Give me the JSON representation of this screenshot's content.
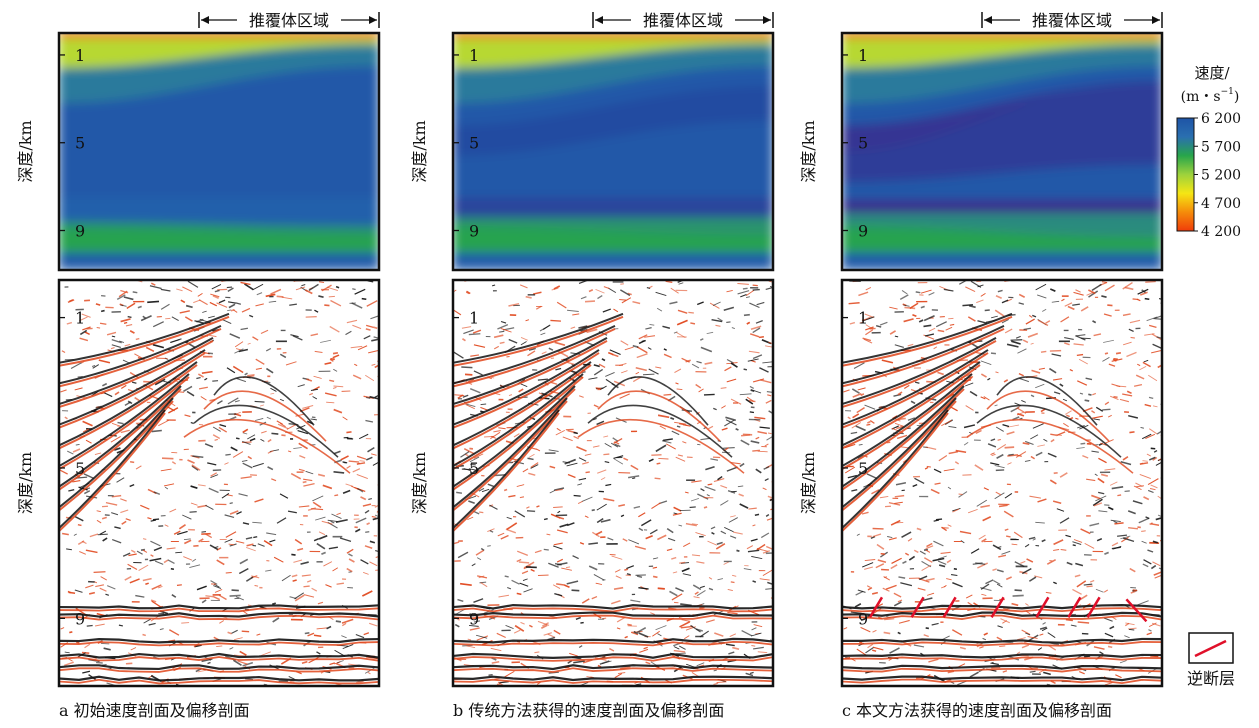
{
  "chart_data": [
    {
      "type": "heatmap",
      "panel": "a",
      "ylabel": "深度/km",
      "yticks": [
        1,
        5,
        9
      ],
      "region_label": "推覆体区域",
      "caption": "a 初始速度剖面及偏移剖面",
      "velocity_layers": [
        {
          "depth_left": 0.2,
          "depth_right": 0.2,
          "v": 4300
        },
        {
          "depth_left": 1.6,
          "depth_right": 0.5,
          "v": 5100
        },
        {
          "depth_left": 3.2,
          "depth_right": 1.5,
          "v": 5800
        },
        {
          "depth_left": 4.2,
          "depth_right": 2.4,
          "v": 6150
        },
        {
          "depth_left": 7.5,
          "depth_right": 7.5,
          "v": 6150
        },
        {
          "depth_left": 8.6,
          "depth_right": 8.8,
          "v": 6050
        },
        {
          "depth_left": 8.9,
          "depth_right": 9.2,
          "v": 5650
        },
        {
          "depth_left": 10.0,
          "depth_right": 10.0,
          "v": 5550
        },
        {
          "depth_left": 10.5,
          "depth_right": 10.5,
          "v": 6100
        }
      ]
    },
    {
      "type": "heatmap",
      "panel": "b",
      "ylabel": "深度/km",
      "yticks": [
        1,
        5,
        9
      ],
      "region_label": "推覆体区域",
      "caption": "b 传统方法获得的速度剖面及偏移剖面",
      "velocity_layers": [
        {
          "depth_left": 0.2,
          "depth_right": 0.2,
          "v": 4300
        },
        {
          "depth_left": 1.6,
          "depth_right": 0.5,
          "v": 5100
        },
        {
          "depth_left": 3.2,
          "depth_right": 1.5,
          "v": 5800
        },
        {
          "depth_left": 4.2,
          "depth_right": 2.4,
          "v": 6150
        },
        {
          "depth_left": 5.6,
          "depth_right": 4.0,
          "v": 6250
        },
        {
          "depth_left": 7.5,
          "depth_right": 7.5,
          "v": 6150
        },
        {
          "depth_left": 8.4,
          "depth_right": 8.4,
          "v": 6300
        },
        {
          "depth_left": 8.8,
          "depth_right": 9.2,
          "v": 5650
        },
        {
          "depth_left": 10.0,
          "depth_right": 10.0,
          "v": 5550
        },
        {
          "depth_left": 10.5,
          "depth_right": 10.5,
          "v": 6100
        }
      ]
    },
    {
      "type": "heatmap",
      "panel": "c",
      "ylabel": "深度/km",
      "yticks": [
        1,
        5,
        9
      ],
      "region_label": "推覆体区域",
      "caption": "c 本文方法获得的速度剖面及偏移剖面",
      "velocity_layers": [
        {
          "depth_left": 0.2,
          "depth_right": 0.2,
          "v": 4300
        },
        {
          "depth_left": 1.6,
          "depth_right": 0.5,
          "v": 5100
        },
        {
          "depth_left": 3.2,
          "depth_right": 1.5,
          "v": 5800
        },
        {
          "depth_left": 4.2,
          "depth_right": 2.2,
          "v": 6150
        },
        {
          "depth_left": 5.4,
          "depth_right": 2.0,
          "v": 6400
        },
        {
          "depth_left": 6.8,
          "depth_right": 6.0,
          "v": 6350
        },
        {
          "depth_left": 7.6,
          "depth_right": 7.6,
          "v": 6150
        },
        {
          "depth_left": 8.2,
          "depth_right": 8.2,
          "v": 6450
        },
        {
          "depth_left": 8.8,
          "depth_right": 9.3,
          "v": 5700
        },
        {
          "depth_left": 10.0,
          "depth_right": 10.0,
          "v": 5550
        },
        {
          "depth_left": 10.5,
          "depth_right": 10.5,
          "v": 6100
        }
      ],
      "faults_marked": true
    }
  ],
  "colorbar": {
    "title_line1": "速度/",
    "title_line2": "(m・s",
    "title_sup": "−1",
    "title_close": ")",
    "ticks": [
      "6 200",
      "5 700",
      "5 200",
      "4 700",
      "4 200"
    ],
    "min": 4200,
    "max": 6200,
    "stops": [
      "#f03c0a",
      "#f58c0a",
      "#f5e614",
      "#9dd23c",
      "#28a64b",
      "#2a6fb0",
      "#1e54a6",
      "#3a2d8e"
    ]
  },
  "legend": {
    "label": "逆断层",
    "fault_color": "#e0102a"
  },
  "colors": {
    "wiggle_red": "#e0451a",
    "wiggle_black": "#111111",
    "frame": "#111111"
  }
}
